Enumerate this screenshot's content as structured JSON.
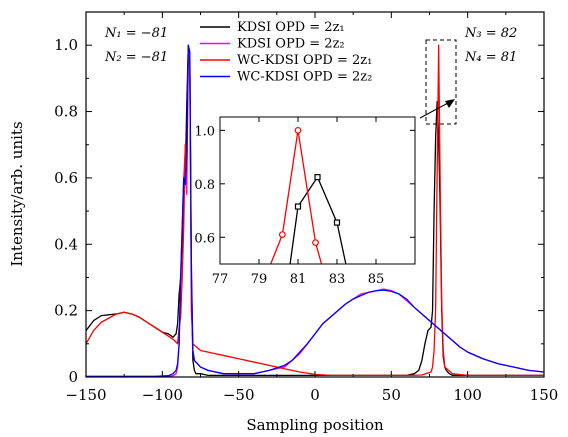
{
  "chart_data": {
    "type": "line",
    "xlabel": "Sampling position",
    "ylabel": "Intensity/arb. units",
    "xlim": [
      -150,
      150
    ],
    "ylim": [
      0,
      1.1
    ],
    "xticks": [
      -150,
      -100,
      -50,
      0,
      50,
      100,
      150
    ],
    "yticks": [
      0,
      0.2,
      0.4,
      0.6,
      0.8,
      1.0
    ],
    "xtick_labels": [
      "−150",
      "−100",
      "−50",
      "0",
      "50",
      "100",
      "150"
    ],
    "ytick_labels": [
      "0",
      "0.2",
      "0.4",
      "0.6",
      "0.8",
      "1.0"
    ],
    "grid": false,
    "legend": "top-center",
    "annotations": {
      "n1": "N₁ = −81",
      "n2": "N₂ = −81",
      "n3": "N₃ =  82",
      "n4": "N₄ =  81"
    },
    "series": [
      {
        "name": "KDSI OPD = 2z₁",
        "color": "#000000",
        "x": [
          -150,
          -145,
          -140,
          -130,
          -125,
          -120,
          -115,
          -110,
          -105,
          -100,
          -96,
          -93,
          -91,
          -90,
          -89,
          -88,
          -87,
          -86,
          -85,
          -84,
          -83,
          -82,
          -81,
          -80,
          -79,
          -78,
          -75,
          -70,
          -60,
          -50,
          -40,
          -30,
          -20,
          -10,
          0,
          10,
          20,
          30,
          40,
          50,
          60,
          65,
          68,
          70,
          72,
          74,
          76,
          77,
          78,
          79,
          80,
          81,
          82,
          83,
          84,
          85,
          86,
          88,
          90,
          100,
          110,
          120,
          130,
          140,
          150
        ],
        "y": [
          0.14,
          0.17,
          0.185,
          0.19,
          0.195,
          0.19,
          0.18,
          0.165,
          0.15,
          0.135,
          0.13,
          0.12,
          0.13,
          0.16,
          0.25,
          0.3,
          0.4,
          0.55,
          0.6,
          0.82,
          1.0,
          0.95,
          0.3,
          0.05,
          0.02,
          0.01,
          0.01,
          0.005,
          0.005,
          0.005,
          0.005,
          0.005,
          0.005,
          0.005,
          0.005,
          0.005,
          0.005,
          0.005,
          0.005,
          0.005,
          0.005,
          0.01,
          0.02,
          0.05,
          0.1,
          0.14,
          0.15,
          0.2,
          0.5,
          0.72,
          0.83,
          0.72,
          0.5,
          0.2,
          0.06,
          0.03,
          0.02,
          0.01,
          0.005,
          0.005,
          0.005,
          0.005,
          0.005,
          0.005,
          0.005
        ]
      },
      {
        "name": "KDSI OPD = 2z₂",
        "color": "#ff00cc",
        "x": [
          -150,
          -145,
          -140,
          -130,
          -125,
          -120,
          -115,
          -110,
          -105,
          -100,
          -96,
          -93,
          -91,
          -90,
          -89,
          -88,
          -87,
          -86,
          -85,
          -84,
          -83,
          -82,
          -81,
          -80,
          -79,
          -75,
          -70,
          -60,
          -50,
          -40,
          -30,
          -20,
          -15,
          -10,
          -5,
          0,
          5,
          10,
          15,
          20,
          25,
          30,
          35,
          40,
          45,
          50,
          55,
          60,
          65,
          70,
          75,
          80,
          85,
          90,
          95,
          100,
          110,
          120,
          130,
          140,
          150
        ],
        "y": [
          0.002,
          0.002,
          0.002,
          0.002,
          0.002,
          0.002,
          0.002,
          0.002,
          0.002,
          0.003,
          0.003,
          0.004,
          0.01,
          0.03,
          0.1,
          0.3,
          0.45,
          0.6,
          0.68,
          0.55,
          0.98,
          0.95,
          0.3,
          0.08,
          0.05,
          0.03,
          0.02,
          0.01,
          0.01,
          0.01,
          0.02,
          0.03,
          0.05,
          0.07,
          0.1,
          0.13,
          0.16,
          0.18,
          0.2,
          0.22,
          0.235,
          0.25,
          0.255,
          0.26,
          0.265,
          0.26,
          0.25,
          0.23,
          0.21,
          0.19,
          0.17,
          0.15,
          0.13,
          0.11,
          0.09,
          0.075,
          0.055,
          0.04,
          0.03,
          0.02,
          0.015
        ]
      },
      {
        "name": "WC-KDSI OPD = 2z₁",
        "color": "#ff0000",
        "x": [
          -150,
          -145,
          -140,
          -130,
          -125,
          -120,
          -115,
          -110,
          -105,
          -100,
          -95,
          -92,
          -90,
          -89,
          -88,
          -87,
          -86,
          -85,
          -84,
          -83,
          -82,
          -81,
          -80,
          -75,
          -70,
          -60,
          -50,
          -40,
          -30,
          -20,
          -10,
          0,
          10,
          20,
          30,
          40,
          50,
          60,
          70,
          76,
          77,
          78,
          79,
          80,
          81,
          82,
          83,
          84,
          85,
          90,
          100,
          110,
          120,
          130,
          140,
          150
        ],
        "y": [
          0.1,
          0.14,
          0.165,
          0.19,
          0.195,
          0.19,
          0.18,
          0.165,
          0.15,
          0.135,
          0.12,
          0.11,
          0.1,
          0.15,
          0.18,
          0.3,
          0.45,
          0.7,
          0.62,
          0.97,
          0.94,
          0.2,
          0.1,
          0.08,
          0.075,
          0.065,
          0.055,
          0.045,
          0.035,
          0.025,
          0.015,
          0.008,
          0.005,
          0.005,
          0.005,
          0.005,
          0.005,
          0.005,
          0.006,
          0.015,
          0.03,
          0.08,
          0.2,
          0.61,
          1.0,
          0.58,
          0.22,
          0.08,
          0.03,
          0.01,
          0.005,
          0.005,
          0.005,
          0.005,
          0.005,
          0.005
        ]
      },
      {
        "name": "WC-KDSI OPD = 2z₂",
        "color": "#0000ff",
        "x": [
          -150,
          -145,
          -140,
          -130,
          -125,
          -120,
          -115,
          -110,
          -105,
          -100,
          -96,
          -93,
          -91,
          -90,
          -89,
          -88,
          -87,
          -86,
          -85,
          -84,
          -83,
          -82,
          -81,
          -80,
          -79,
          -75,
          -70,
          -60,
          -50,
          -40,
          -30,
          -20,
          -15,
          -10,
          -5,
          0,
          5,
          10,
          15,
          20,
          25,
          30,
          35,
          40,
          45,
          50,
          55,
          60,
          65,
          70,
          75,
          80,
          85,
          90,
          95,
          100,
          110,
          120,
          130,
          140,
          150
        ],
        "y": [
          0.002,
          0.002,
          0.002,
          0.002,
          0.002,
          0.002,
          0.002,
          0.002,
          0.002,
          0.003,
          0.004,
          0.01,
          0.02,
          0.04,
          0.1,
          0.3,
          0.45,
          0.6,
          0.58,
          0.68,
          1.0,
          0.98,
          0.35,
          0.08,
          0.05,
          0.03,
          0.02,
          0.01,
          0.01,
          0.01,
          0.02,
          0.035,
          0.05,
          0.075,
          0.1,
          0.13,
          0.16,
          0.18,
          0.2,
          0.22,
          0.235,
          0.245,
          0.255,
          0.26,
          0.262,
          0.258,
          0.25,
          0.235,
          0.21,
          0.19,
          0.17,
          0.15,
          0.13,
          0.11,
          0.09,
          0.075,
          0.055,
          0.04,
          0.03,
          0.02,
          0.015
        ]
      }
    ],
    "inset": {
      "xlim": [
        77,
        87
      ],
      "ylim": [
        0.5,
        1.05
      ],
      "xticks": [
        77,
        79,
        81,
        83,
        85
      ],
      "yticks": [
        0.6,
        0.8,
        1.0
      ],
      "xtick_labels": [
        "77",
        "79",
        "81",
        "83",
        "85"
      ],
      "ytick_labels": [
        "0.6",
        "0.8",
        "1.0"
      ],
      "series": [
        {
          "color": "#000000",
          "marker": "square",
          "x": [
            80.5,
            81,
            82,
            83,
            83.6
          ],
          "y": [
            0.45,
            0.715,
            0.825,
            0.655,
            0.45
          ],
          "marked": [
            1,
            2,
            3
          ]
        },
        {
          "color": "#ff0000",
          "marker": "circle",
          "x": [
            79.6,
            80.2,
            81,
            81.9,
            82.4
          ],
          "y": [
            0.5,
            0.61,
            1.0,
            0.58,
            0.45
          ],
          "marked": [
            1,
            2,
            3
          ]
        }
      ]
    }
  }
}
